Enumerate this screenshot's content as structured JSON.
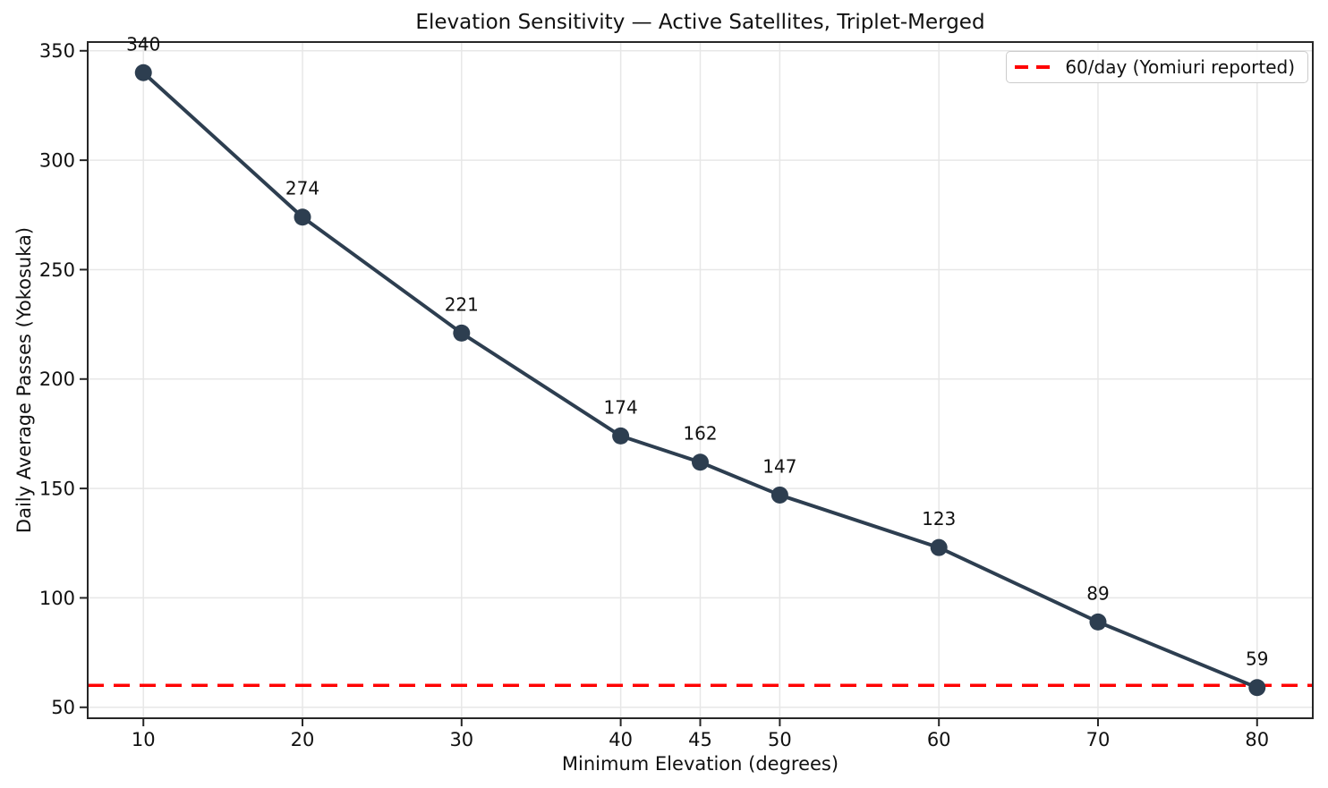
{
  "chart_data": {
    "type": "line",
    "title": "Elevation Sensitivity — Active Satellites, Triplet-Merged",
    "xlabel": "Minimum Elevation (degrees)",
    "ylabel": "Daily Average Passes (Yokosuka)",
    "x": [
      10,
      20,
      30,
      40,
      45,
      50,
      60,
      70,
      80
    ],
    "values": [
      340,
      274,
      221,
      174,
      162,
      147,
      123,
      89,
      59
    ],
    "point_labels": [
      "340",
      "274",
      "221",
      "174",
      "162",
      "147",
      "123",
      "89",
      "59"
    ],
    "xticks": [
      10,
      20,
      30,
      40,
      45,
      50,
      60,
      70,
      80
    ],
    "yticks": [
      50,
      100,
      150,
      200,
      250,
      300,
      350
    ],
    "xlim": [
      6.5,
      83.5
    ],
    "ylim": [
      45,
      354
    ],
    "grid": true,
    "reference_line": {
      "y": 60,
      "label": "60/day (Yomiuri reported)"
    },
    "legend": {
      "position": "upper right",
      "entries": [
        {
          "label": "60/day (Yomiuri reported)",
          "color": "#ff0000",
          "style": "dashed"
        }
      ]
    },
    "colors": {
      "series": "#2d3e50",
      "reference": "#ff0000",
      "grid": "#e7e7e7",
      "spine": "#262626",
      "text": "#111111",
      "background": "#ffffff"
    }
  }
}
